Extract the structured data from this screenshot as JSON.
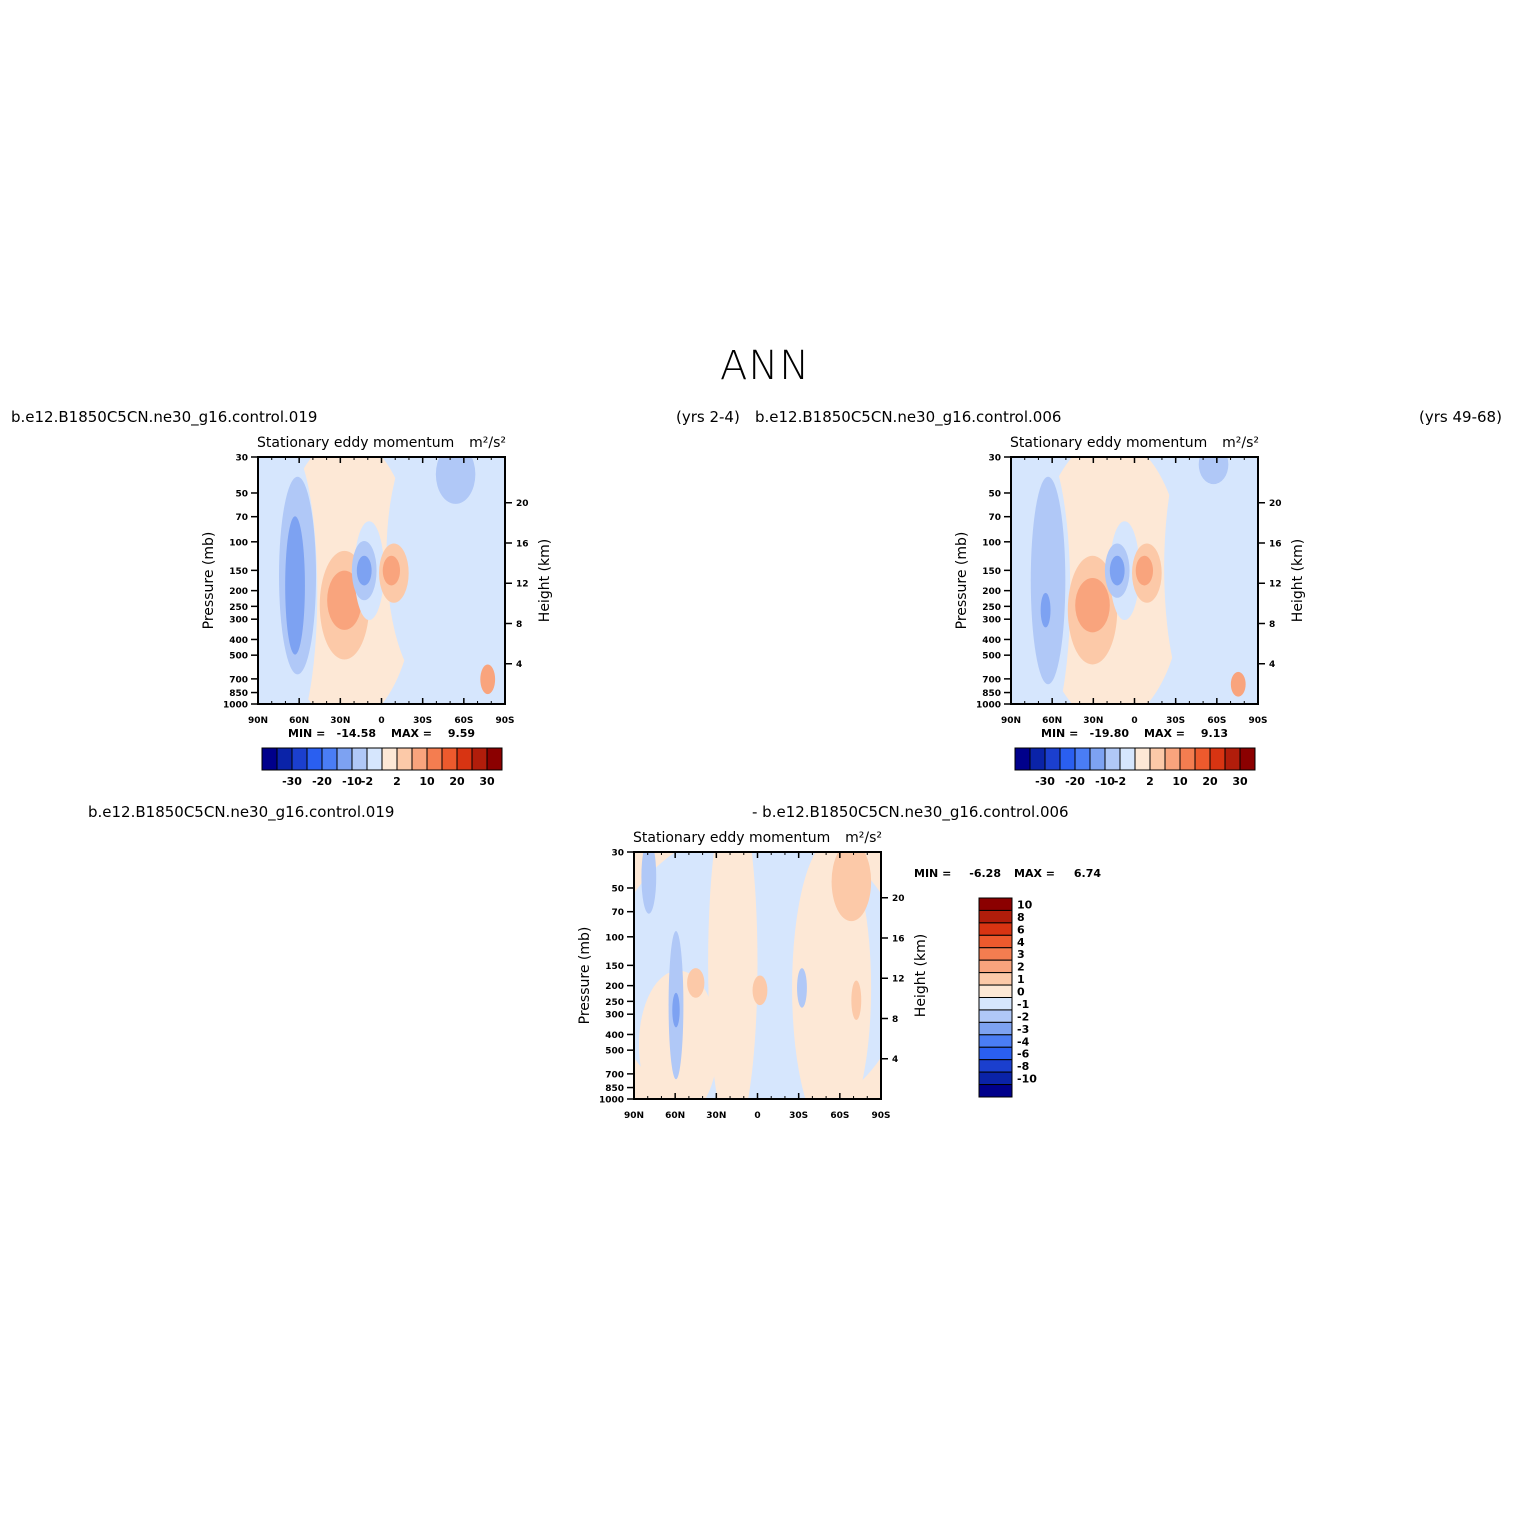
{
  "figure": {
    "title": "ANN"
  },
  "colors": {
    "neg": [
      "#00008b",
      "#0a23a8",
      "#1b3fce",
      "#2a5ff0",
      "#4a7df5",
      "#7da2f2",
      "#b0c8f7",
      "#d6e6fd"
    ],
    "pos": [
      "#fde8d6",
      "#fcc9a8",
      "#f9a47d",
      "#f47d50",
      "#ed5a2d",
      "#d83412",
      "#b11d0b",
      "#8b0000"
    ]
  },
  "chart_data": [
    {
      "type": "contour",
      "case_left": "b.e12.B1850C5CN.ne30_g16.control.019",
      "case_right": "(yrs 2-4)",
      "subtitle": "Stationary eddy momentum",
      "units": "m²/s²",
      "ylabel_left": "Pressure (mb)",
      "ylabel_right": "Height (km)",
      "x_ticks": [
        "90N",
        "60N",
        "30N",
        "0",
        "30S",
        "60S",
        "90S"
      ],
      "pressure_ticks": [
        30,
        50,
        70,
        100,
        150,
        200,
        250,
        300,
        400,
        500,
        700,
        850,
        1000
      ],
      "height_ticks": [
        20,
        16,
        12,
        8,
        4
      ],
      "min_label": "MIN =",
      "min": "-14.58",
      "max_label": "MAX =",
      "max": "9.59",
      "colorbar_labels": [
        "-30",
        "-20",
        "-10",
        "-2",
        "2",
        "10",
        "20",
        "30"
      ]
    },
    {
      "type": "contour",
      "case_left": "b.e12.B1850C5CN.ne30_g16.control.006",
      "case_right": "(yrs 49-68)",
      "subtitle": "Stationary eddy momentum",
      "units": "m²/s²",
      "ylabel_left": "Pressure (mb)",
      "ylabel_right": "Height (km)",
      "x_ticks": [
        "90N",
        "60N",
        "30N",
        "0",
        "30S",
        "60S",
        "90S"
      ],
      "pressure_ticks": [
        30,
        50,
        70,
        100,
        150,
        200,
        250,
        300,
        400,
        500,
        700,
        850,
        1000
      ],
      "height_ticks": [
        20,
        16,
        12,
        8,
        4
      ],
      "min_label": "MIN =",
      "min": "-19.80",
      "max_label": "MAX =",
      "max": "9.13",
      "colorbar_labels": [
        "-30",
        "-20",
        "-10",
        "-2",
        "2",
        "10",
        "20",
        "30"
      ]
    },
    {
      "type": "contour",
      "case_left": "b.e12.B1850C5CN.ne30_g16.control.019",
      "case_right": "- b.e12.B1850C5CN.ne30_g16.control.006",
      "subtitle": "Stationary eddy momentum",
      "units": "m²/s²",
      "ylabel_left": "Pressure (mb)",
      "ylabel_right": "Height (km)",
      "x_ticks": [
        "90N",
        "60N",
        "30N",
        "0",
        "30S",
        "60S",
        "90S"
      ],
      "pressure_ticks": [
        30,
        50,
        70,
        100,
        150,
        200,
        250,
        300,
        400,
        500,
        700,
        850,
        1000
      ],
      "height_ticks": [
        20,
        16,
        12,
        8,
        4
      ],
      "min_label": "MIN =",
      "min": "-6.28",
      "max_label": "MAX =",
      "max": "6.74",
      "colorbar_labels": [
        "10",
        "8",
        "6",
        "4",
        "3",
        "2",
        "1",
        "0",
        "-1",
        "-2",
        "-3",
        "-4",
        "-6",
        "-8",
        "-10"
      ]
    }
  ]
}
